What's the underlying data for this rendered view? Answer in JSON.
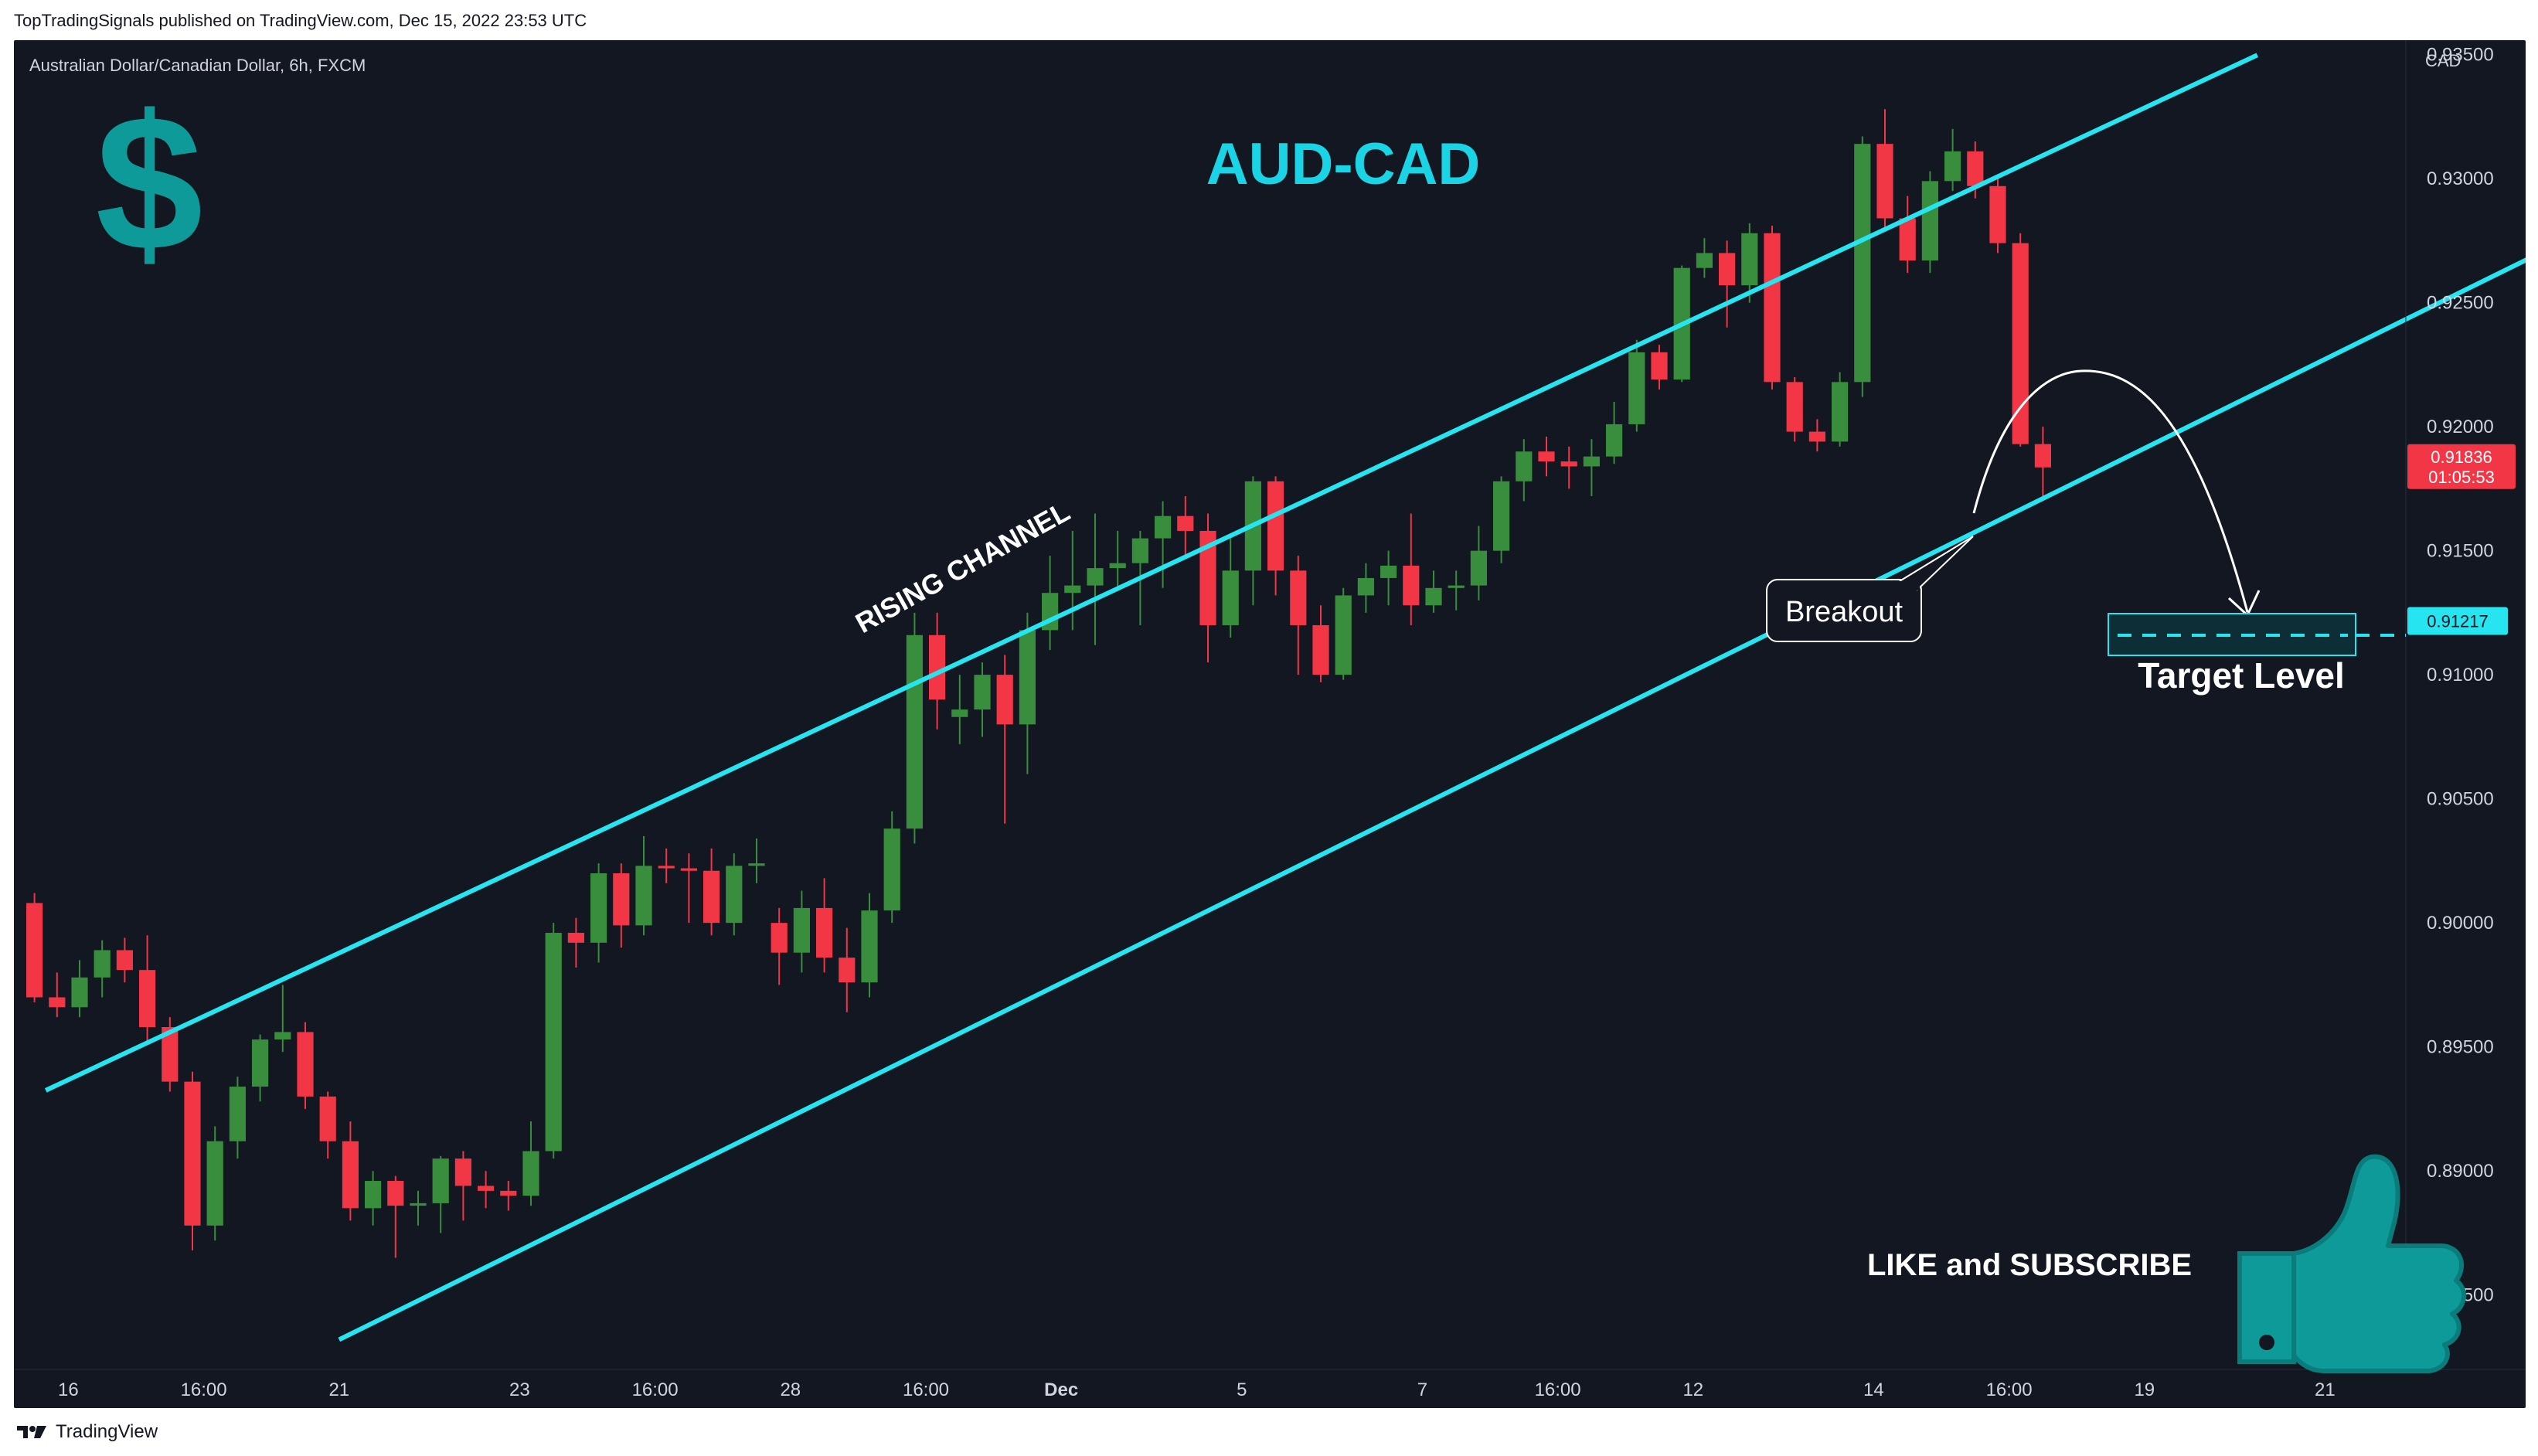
{
  "header": {
    "published_line": "TopTradingSignals published on TradingView.com, Dec 15, 2022 23:53 UTC"
  },
  "chart_header": {
    "symbol_line": "Australian Dollar/Canadian Dollar, 6h, FXCM",
    "currency": "CAD"
  },
  "footer": {
    "brand": "TradingView"
  },
  "colors": {
    "background": "#131722",
    "up_candle": "#388e3c",
    "down_candle": "#f23645",
    "channel": "#26e5f0",
    "title": "#1ad4e6",
    "icon_teal": "#0f9a9a"
  },
  "icons": {
    "dollar": "dollar-icon",
    "thumbs_up": "thumbs-up-icon",
    "tv_logo": "tradingview-logo-icon"
  },
  "chart_data": {
    "type": "candlestick",
    "symbol": "Australian Dollar/Canadian Dollar",
    "timeframe": "6h",
    "source": "FXCM",
    "title": "AUD-CAD",
    "ylim": [
      0.882,
      0.93558
    ],
    "y_ticks": [
      "0.93500",
      "0.93000",
      "0.92500",
      "0.92000",
      "0.91500",
      "0.91000",
      "0.90500",
      "0.90000",
      "0.89500",
      "0.89000",
      "0.88500"
    ],
    "y_tick_values": [
      0.935,
      0.93,
      0.925,
      0.92,
      0.915,
      0.91,
      0.905,
      0.9,
      0.895,
      0.89,
      0.885
    ],
    "x_ticks": [
      {
        "label": "16",
        "bar": 2
      },
      {
        "label": "16:00",
        "bar": 8
      },
      {
        "label": "21",
        "bar": 14
      },
      {
        "label": "23",
        "bar": 22
      },
      {
        "label": "16:00",
        "bar": 28
      },
      {
        "label": "28",
        "bar": 34
      },
      {
        "label": "16:00",
        "bar": 40
      },
      {
        "label": "Dec",
        "bar": 46
      },
      {
        "label": "5",
        "bar": 54
      },
      {
        "label": "7",
        "bar": 62
      },
      {
        "label": "16:00",
        "bar": 68
      },
      {
        "label": "12",
        "bar": 74
      },
      {
        "label": "14",
        "bar": 82
      },
      {
        "label": "16:00",
        "bar": 88
      },
      {
        "label": "19",
        "bar": 94
      },
      {
        "label": "21",
        "bar": 102
      }
    ],
    "candles": [
      [
        0.9008,
        0.9012,
        0.8968,
        0.897
      ],
      [
        0.897,
        0.898,
        0.8962,
        0.8966
      ],
      [
        0.8966,
        0.8985,
        0.8962,
        0.8978
      ],
      [
        0.8978,
        0.8993,
        0.897,
        0.8989
      ],
      [
        0.8989,
        0.8994,
        0.8976,
        0.8981
      ],
      [
        0.8981,
        0.8995,
        0.8952,
        0.8958
      ],
      [
        0.8958,
        0.8962,
        0.8932,
        0.8936
      ],
      [
        0.8936,
        0.894,
        0.8868,
        0.8878
      ],
      [
        0.8878,
        0.8918,
        0.8872,
        0.8912
      ],
      [
        0.8912,
        0.8938,
        0.8905,
        0.8934
      ],
      [
        0.8934,
        0.8955,
        0.8928,
        0.8953
      ],
      [
        0.8953,
        0.8975,
        0.8948,
        0.8956
      ],
      [
        0.8956,
        0.896,
        0.8925,
        0.893
      ],
      [
        0.893,
        0.8932,
        0.8905,
        0.8912
      ],
      [
        0.8912,
        0.892,
        0.888,
        0.8885
      ],
      [
        0.8885,
        0.89,
        0.8878,
        0.8896
      ],
      [
        0.8896,
        0.8898,
        0.8865,
        0.8886
      ],
      [
        0.8886,
        0.8892,
        0.8878,
        0.8887
      ],
      [
        0.8887,
        0.8906,
        0.8875,
        0.8905
      ],
      [
        0.8905,
        0.8908,
        0.888,
        0.8894
      ],
      [
        0.8894,
        0.89,
        0.8885,
        0.8892
      ],
      [
        0.8892,
        0.8896,
        0.8884,
        0.889
      ],
      [
        0.889,
        0.892,
        0.8886,
        0.8908
      ],
      [
        0.8908,
        0.9,
        0.8905,
        0.8996
      ],
      [
        0.8996,
        0.9002,
        0.8982,
        0.8992
      ],
      [
        0.8992,
        0.9024,
        0.8984,
        0.902
      ],
      [
        0.902,
        0.9024,
        0.899,
        0.8999
      ],
      [
        0.8999,
        0.9035,
        0.8995,
        0.9023
      ],
      [
        0.9023,
        0.903,
        0.9016,
        0.9022
      ],
      [
        0.9022,
        0.9028,
        0.9,
        0.9021
      ],
      [
        0.9021,
        0.903,
        0.8995,
        0.9
      ],
      [
        0.9,
        0.9028,
        0.8995,
        0.9023
      ],
      [
        0.9023,
        0.9034,
        0.9016,
        0.9024
      ],
      [
        0.9,
        0.9006,
        0.8975,
        0.8988
      ],
      [
        0.8988,
        0.9013,
        0.898,
        0.9006
      ],
      [
        0.9006,
        0.9018,
        0.898,
        0.8986
      ],
      [
        0.8986,
        0.8998,
        0.8964,
        0.8976
      ],
      [
        0.8976,
        0.9012,
        0.897,
        0.9005
      ],
      [
        0.9005,
        0.9045,
        0.9,
        0.9038
      ],
      [
        0.9038,
        0.9125,
        0.9032,
        0.9116
      ],
      [
        0.9116,
        0.9125,
        0.9078,
        0.909
      ],
      [
        0.9083,
        0.91,
        0.9072,
        0.9086
      ],
      [
        0.9086,
        0.9105,
        0.9075,
        0.91
      ],
      [
        0.91,
        0.9108,
        0.904,
        0.908
      ],
      [
        0.908,
        0.9125,
        0.906,
        0.9118
      ],
      [
        0.9118,
        0.9148,
        0.911,
        0.9133
      ],
      [
        0.9133,
        0.9158,
        0.9118,
        0.9136
      ],
      [
        0.9136,
        0.9165,
        0.9112,
        0.9143
      ],
      [
        0.9143,
        0.9158,
        0.9135,
        0.9145
      ],
      [
        0.9145,
        0.9158,
        0.912,
        0.9155
      ],
      [
        0.9155,
        0.917,
        0.9135,
        0.9164
      ],
      [
        0.9164,
        0.9172,
        0.9148,
        0.9158
      ],
      [
        0.9158,
        0.9165,
        0.9105,
        0.912
      ],
      [
        0.912,
        0.9155,
        0.9115,
        0.9142
      ],
      [
        0.9142,
        0.918,
        0.9128,
        0.9178
      ],
      [
        0.9178,
        0.918,
        0.9132,
        0.9142
      ],
      [
        0.9142,
        0.9148,
        0.91,
        0.912
      ],
      [
        0.912,
        0.9128,
        0.9097,
        0.91
      ],
      [
        0.91,
        0.9135,
        0.9098,
        0.9132
      ],
      [
        0.9132,
        0.9145,
        0.9125,
        0.9139
      ],
      [
        0.9139,
        0.915,
        0.9128,
        0.9144
      ],
      [
        0.9144,
        0.9165,
        0.912,
        0.9128
      ],
      [
        0.9128,
        0.9142,
        0.9125,
        0.9135
      ],
      [
        0.9135,
        0.9142,
        0.9126,
        0.9136
      ],
      [
        0.9136,
        0.916,
        0.913,
        0.915
      ],
      [
        0.915,
        0.918,
        0.9145,
        0.9178
      ],
      [
        0.9178,
        0.9195,
        0.917,
        0.919
      ],
      [
        0.919,
        0.9196,
        0.918,
        0.9186
      ],
      [
        0.9186,
        0.9192,
        0.9175,
        0.9184
      ],
      [
        0.9184,
        0.9195,
        0.9172,
        0.9188
      ],
      [
        0.9188,
        0.921,
        0.9185,
        0.9201
      ],
      [
        0.9201,
        0.9235,
        0.9198,
        0.923
      ],
      [
        0.923,
        0.9233,
        0.9215,
        0.9219
      ],
      [
        0.9219,
        0.9265,
        0.9218,
        0.9264
      ],
      [
        0.9264,
        0.9276,
        0.926,
        0.927
      ],
      [
        0.927,
        0.9275,
        0.924,
        0.9257
      ],
      [
        0.9257,
        0.9282,
        0.925,
        0.9278
      ],
      [
        0.9278,
        0.9281,
        0.9215,
        0.9218
      ],
      [
        0.9218,
        0.922,
        0.9194,
        0.9198
      ],
      [
        0.9198,
        0.9203,
        0.919,
        0.9194
      ],
      [
        0.9194,
        0.9222,
        0.9192,
        0.9218
      ],
      [
        0.9218,
        0.9317,
        0.9212,
        0.9314
      ],
      [
        0.9314,
        0.9328,
        0.928,
        0.9284
      ],
      [
        0.9284,
        0.9293,
        0.9262,
        0.9267
      ],
      [
        0.9267,
        0.9303,
        0.9262,
        0.9299
      ],
      [
        0.9299,
        0.932,
        0.9295,
        0.9311
      ],
      [
        0.9311,
        0.9315,
        0.9292,
        0.9297
      ],
      [
        0.9297,
        0.93,
        0.927,
        0.9274
      ],
      [
        0.9274,
        0.9278,
        0.9192,
        0.9193
      ],
      [
        0.9193,
        0.92,
        0.917,
        0.91836
      ]
    ],
    "channel_upper": [
      [
        1,
        0.89325
      ],
      [
        99,
        0.93498
      ]
    ],
    "channel_lower": [
      [
        14,
        0.8832
      ],
      [
        115,
        0.92856
      ]
    ],
    "current_price": {
      "value": "0.91836",
      "countdown": "01:05:53"
    },
    "target_price": {
      "value": "0.91217",
      "y": 0.91217
    },
    "annotations": {
      "channel_label": "RISING CHANNEL",
      "breakout_label": "Breakout",
      "target_label": "Target Level",
      "cta": "LIKE and SUBSCRIBE"
    }
  }
}
